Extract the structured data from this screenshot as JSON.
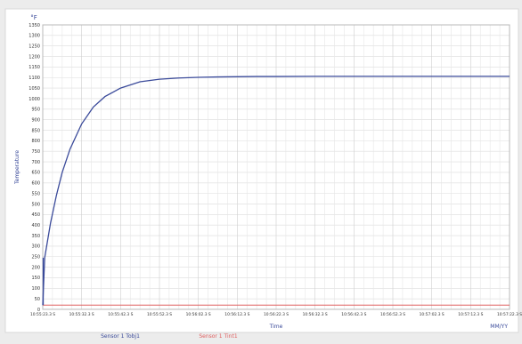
{
  "header": {
    "unit_label": "°F"
  },
  "chart_data": {
    "type": "line",
    "title": "",
    "xlabel": "Time",
    "ylabel": "Temperature",
    "x_unit_label": "MM/YY",
    "grid": true,
    "legend_placement": "bottom",
    "ylim": [
      0,
      1350
    ],
    "y_ticks": [
      0,
      50,
      100,
      150,
      200,
      250,
      300,
      350,
      400,
      450,
      500,
      550,
      600,
      650,
      700,
      750,
      800,
      850,
      900,
      950,
      1000,
      1050,
      1100,
      1150,
      1200,
      1250,
      1300,
      1350
    ],
    "x_ticks": [
      "10:55:23.3 S",
      "10:55:32.3 S",
      "10:55:42.3 S",
      "10:55:52.3 S",
      "10:56:02.3 S",
      "10:56:12.3 S",
      "10:56:22.3 S",
      "10:56:32.3 S",
      "10:56:42.3 S",
      "10:56:52.3 S",
      "10:57:02.3 S",
      "10:57:12.3 S",
      "10:57:22.3 S"
    ],
    "x_range_index": [
      0,
      12
    ],
    "series": [
      {
        "name": "Sensor 1 Tobj1",
        "color": "#3a4a9a",
        "x": [
          0,
          0.05,
          0.1,
          0.2,
          0.35,
          0.5,
          0.7,
          1.0,
          1.3,
          1.6,
          2.0,
          2.5,
          3.0,
          3.5,
          4.0,
          4.5,
          5.0,
          5.5,
          6.0,
          7.0,
          8.0,
          9.0,
          10.0,
          11.0,
          12.0
        ],
        "values": [
          20,
          245,
          300,
          410,
          540,
          650,
          760,
          880,
          960,
          1010,
          1050,
          1080,
          1092,
          1098,
          1101,
          1103,
          1104,
          1105,
          1105,
          1106,
          1106,
          1106,
          1106,
          1106,
          1106
        ]
      },
      {
        "name": "Sensor 1 Tint1",
        "color": "#e06060",
        "x": [
          0,
          12
        ],
        "values": [
          20,
          20
        ]
      }
    ]
  }
}
